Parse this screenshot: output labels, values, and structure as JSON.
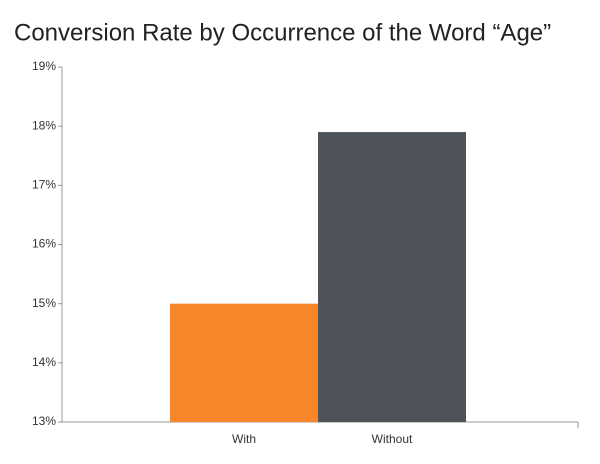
{
  "chart_data": {
    "type": "bar",
    "title": "Conversion Rate by Occurrence of the Word “Age”",
    "categories": [
      "With",
      "Without"
    ],
    "values": [
      15.0,
      17.9
    ],
    "colors": [
      "#f7862a",
      "#4d5359"
    ],
    "ylim": [
      13,
      19
    ],
    "yticks": [
      {
        "value": 13,
        "label": "13%"
      },
      {
        "value": 14,
        "label": "14%"
      },
      {
        "value": 15,
        "label": "15%"
      },
      {
        "value": 16,
        "label": "16%"
      },
      {
        "value": 17,
        "label": "17%"
      },
      {
        "value": 18,
        "label": "18%"
      },
      {
        "value": 19,
        "label": "19%"
      }
    ],
    "grid": false
  }
}
